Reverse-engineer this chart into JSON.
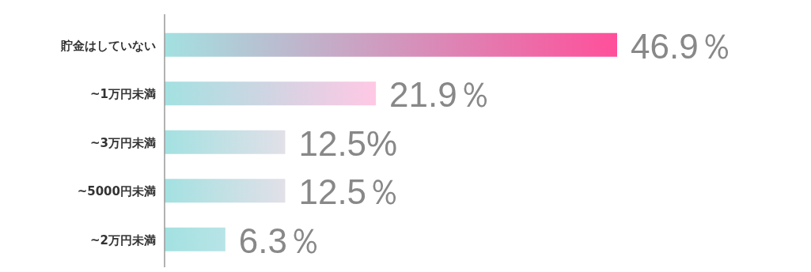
{
  "chart_data": {
    "type": "bar",
    "orientation": "horizontal",
    "categories": [
      "貯金はしていない",
      "~1万円未満",
      "~3万円未満",
      "~5000円未満",
      "~2万円未満"
    ],
    "values": [
      46.9,
      21.9,
      12.5,
      12.5,
      6.3
    ],
    "colors": [
      "#ff4f9a",
      "#ffc8e4",
      "#e2e0e8",
      "#e2e0e8",
      "#b8e4e6"
    ],
    "value_labels": [
      "46.9％",
      "21.9％",
      "12.5%",
      "12.5％",
      "6.3％"
    ]
  }
}
